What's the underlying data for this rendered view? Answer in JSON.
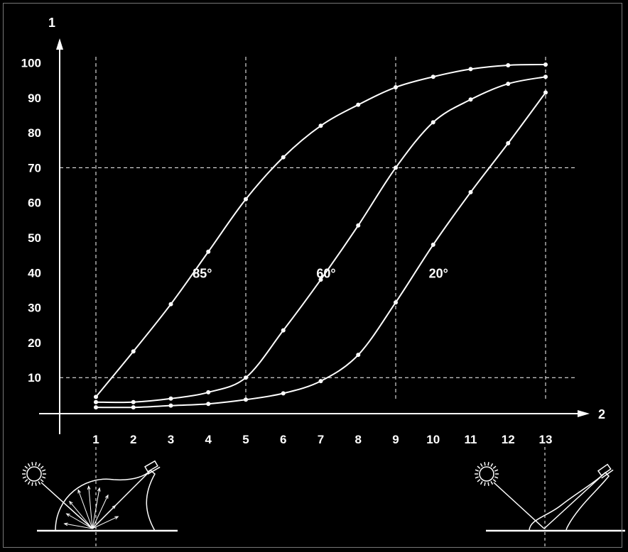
{
  "chart_data": {
    "type": "line",
    "x": [
      1,
      2,
      3,
      4,
      5,
      6,
      7,
      8,
      9,
      10,
      11,
      12,
      13
    ],
    "series": [
      {
        "name": "85°",
        "values": [
          4.5,
          17.5,
          31,
          46,
          61,
          73,
          82,
          88,
          93,
          96,
          98.2,
          99.3,
          99.5
        ]
      },
      {
        "name": "60°",
        "values": [
          3,
          3,
          4,
          5.8,
          10,
          23.5,
          38,
          53.5,
          70,
          83,
          89.5,
          94,
          96
        ]
      },
      {
        "name": "20°",
        "values": [
          1.5,
          1.5,
          2,
          2.5,
          3.7,
          5.5,
          9,
          16.5,
          31.5,
          48,
          63,
          77,
          91.5
        ]
      }
    ],
    "xlabel": "2",
    "ylabel": "1",
    "xticks": [
      "1",
      "2",
      "3",
      "4",
      "5",
      "6",
      "7",
      "8",
      "9",
      "10",
      "11",
      "12",
      "13"
    ],
    "yticks": [
      "10",
      "20",
      "30",
      "40",
      "50",
      "60",
      "70",
      "80",
      "90",
      "100"
    ],
    "xlim": [
      0,
      14
    ],
    "ylim": [
      -4,
      106
    ],
    "grid_x": [
      1,
      5,
      9,
      13
    ],
    "grid_y": [
      10,
      70
    ],
    "grid": "dashed reference lines only",
    "colors": {
      "background": "#000000",
      "foreground": "#ffffff"
    }
  },
  "illustrations": {
    "left": "sun-diffuse-reflection-icon",
    "right": "sun-specular-reflection-icon"
  }
}
